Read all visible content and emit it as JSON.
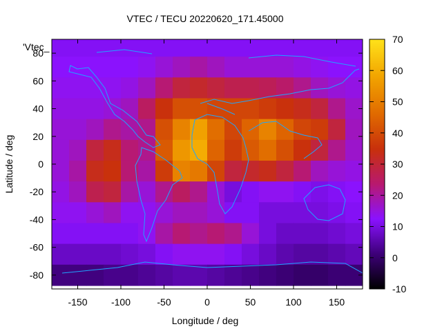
{
  "chart_data": {
    "type": "heatmap",
    "title": "VTEC / TECU 20220620_171.45000",
    "xlabel": "Longitude / deg",
    "ylabel": "Latitude / deg",
    "xlim": [
      -180,
      180
    ],
    "ylim": [
      -90,
      90
    ],
    "x_ticks": [
      -150,
      -100,
      -50,
      0,
      50,
      100,
      150
    ],
    "y_ticks": [
      -80,
      -60,
      -40,
      -20,
      0,
      20,
      40,
      60,
      80
    ],
    "colorbar": {
      "range": [
        -10,
        70
      ],
      "ticks": [
        -10,
        0,
        10,
        20,
        30,
        40,
        50,
        60,
        70
      ],
      "palette": [
        "#000000",
        "#3d0078",
        "#8a12ff",
        "#b8196f",
        "#c8300c",
        "#e06a00",
        "#f2a400",
        "#ffe21a"
      ]
    },
    "overlay_label": "'Vtec_",
    "grid": false,
    "description_of_field": "VTEC values sampled approximately on a coarse lat/lon grid",
    "lat_grid": [
      85,
      70,
      55,
      40,
      25,
      10,
      -5,
      -20,
      -35,
      -50,
      -65,
      -80
    ],
    "lon_grid": [
      -170,
      -150,
      -130,
      -110,
      -90,
      -70,
      -50,
      -30,
      -10,
      10,
      30,
      50,
      70,
      90,
      110,
      130,
      150,
      170
    ],
    "values": [
      [
        12,
        12,
        12,
        12,
        12,
        12,
        12,
        12,
        12,
        12,
        12,
        12,
        12,
        12,
        12,
        12,
        12,
        12
      ],
      [
        13,
        13,
        13,
        13,
        13,
        14,
        16,
        18,
        20,
        18,
        16,
        16,
        16,
        16,
        15,
        14,
        13,
        13
      ],
      [
        14,
        14,
        14,
        14,
        15,
        18,
        24,
        30,
        32,
        30,
        28,
        28,
        27,
        25,
        22,
        18,
        16,
        15
      ],
      [
        15,
        15,
        15,
        16,
        18,
        26,
        36,
        42,
        42,
        40,
        40,
        40,
        38,
        36,
        34,
        30,
        22,
        17
      ],
      [
        16,
        16,
        18,
        22,
        20,
        22,
        42,
        52,
        58,
        48,
        40,
        46,
        52,
        46,
        40,
        38,
        30,
        18
      ],
      [
        16,
        18,
        30,
        34,
        24,
        22,
        44,
        56,
        60,
        46,
        38,
        44,
        48,
        42,
        36,
        30,
        22,
        17
      ],
      [
        16,
        20,
        34,
        36,
        24,
        20,
        38,
        52,
        50,
        40,
        30,
        32,
        34,
        30,
        24,
        18,
        16,
        15
      ],
      [
        15,
        18,
        28,
        30,
        20,
        16,
        22,
        26,
        22,
        16,
        10,
        12,
        14,
        14,
        12,
        11,
        12,
        13
      ],
      [
        14,
        14,
        16,
        18,
        14,
        14,
        16,
        18,
        18,
        16,
        12,
        12,
        10,
        10,
        10,
        10,
        11,
        12
      ],
      [
        12,
        12,
        12,
        12,
        12,
        14,
        20,
        24,
        22,
        24,
        22,
        16,
        10,
        8,
        8,
        8,
        9,
        10
      ],
      [
        8,
        8,
        8,
        8,
        9,
        10,
        12,
        14,
        14,
        14,
        12,
        10,
        8,
        6,
        5,
        5,
        6,
        7
      ],
      [
        2,
        2,
        2,
        3,
        3,
        4,
        5,
        6,
        6,
        5,
        4,
        3,
        2,
        1,
        0,
        0,
        1,
        1
      ]
    ]
  }
}
